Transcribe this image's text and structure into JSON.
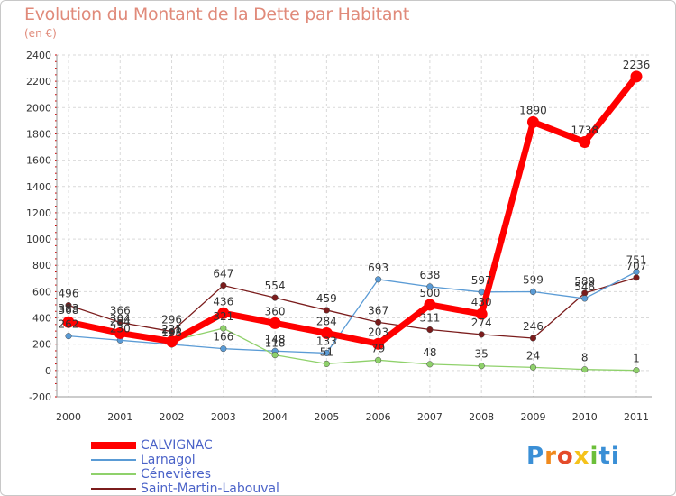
{
  "title": "Evolution du Montant de la Dette par Habitant",
  "subtitle": "(en €)",
  "chart_data": {
    "type": "line",
    "categories": [
      "2000",
      "2001",
      "2002",
      "2003",
      "2004",
      "2005",
      "2006",
      "2007",
      "2008",
      "2009",
      "2010",
      "2011"
    ],
    "ylim": [
      -200,
      2400
    ],
    "yticks": [
      -200,
      0,
      200,
      400,
      600,
      800,
      1000,
      1200,
      1400,
      1600,
      1800,
      2000,
      2200,
      2400
    ],
    "series": [
      {
        "name": "Saint-Martin-Labouval",
        "color": "#7b1c1c",
        "values": [
          496,
          366,
          296,
          647,
          554,
          459,
          367,
          311,
          274,
          246,
          589,
          707
        ]
      },
      {
        "name": "Larnagol",
        "color": "#5a9bd5",
        "values": [
          262,
          230,
          198,
          166,
          148,
          133,
          693,
          638,
          597,
          599,
          548,
          751
        ]
      },
      {
        "name": "Cénevières",
        "color": "#8fd16b",
        "values": [
          383,
          304,
          225,
          321,
          118,
          51,
          79,
          48,
          35,
          24,
          8,
          1
        ]
      },
      {
        "name": "CALVIGNAC",
        "color": "#ff0000",
        "values": [
          368,
          284,
          221,
          436,
          360,
          284,
          203,
          500,
          430,
          1890,
          1738,
          2236
        ]
      }
    ]
  },
  "legend": [
    {
      "label": "CALVIGNAC",
      "color": "#ff0000",
      "weight": 8
    },
    {
      "label": "Larnagol",
      "color": "#5a9bd5",
      "weight": 2
    },
    {
      "label": "Cénevières",
      "color": "#8fd16b",
      "weight": 2
    },
    {
      "label": "Saint-Martin-Labouval",
      "color": "#7b1c1c",
      "weight": 2
    }
  ],
  "logo": {
    "text": "Proxiti"
  }
}
